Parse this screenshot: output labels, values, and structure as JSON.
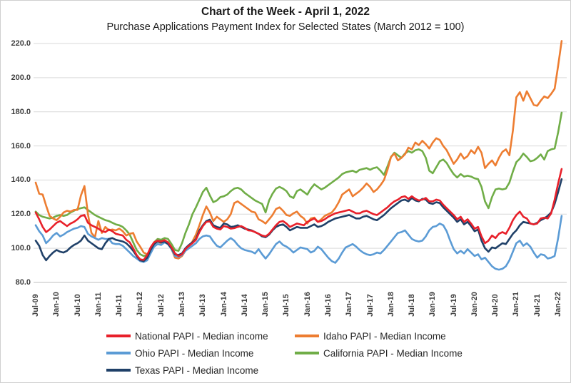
{
  "chart_data": {
    "type": "line",
    "title": "Chart of the Week - April 1, 2022",
    "subtitle": "Purchase Applications Payment Index for Selected States (March 2012 = 100)",
    "x_start": "Jul-2009",
    "x_end": "Feb-2022",
    "x_frequency": "monthly",
    "grid": "horizontal",
    "legend_position": "bottom",
    "ylim": [
      80,
      220
    ],
    "y_ticks": [
      220,
      200,
      180,
      160,
      140,
      120,
      100,
      80
    ],
    "y_tick_labels": [
      "220.0",
      "200.0",
      "180.0",
      "160.0",
      "140.0",
      "120.0",
      "100.0",
      "80.0"
    ],
    "x_tick_labels": [
      "Jul-09",
      "Jan-10",
      "Jul-10",
      "Jan-11",
      "Jul-11",
      "Jan-12",
      "Jul-12",
      "Jan-13",
      "Jul-13",
      "Jan-14",
      "Jul-14",
      "Jan-15",
      "Jul-15",
      "Jan-16",
      "Jul-16",
      "Jan-17",
      "Jul-17",
      "Jan-18",
      "Jul-18",
      "Jan-19",
      "Jul-19",
      "Jan-20",
      "Jul-20",
      "Jan-21",
      "Jul-21",
      "Jan-22"
    ],
    "series": [
      {
        "id": "national",
        "name": "National PAPI - Median income",
        "color": "#e8202a",
        "z": 5,
        "values": [
          121,
          117,
          112.5,
          109.5,
          111,
          113,
          115,
          116,
          114.5,
          113,
          114.5,
          115.5,
          117,
          119,
          119.5,
          115,
          113.5,
          112.5,
          111.5,
          110,
          109.5,
          111,
          110,
          108.5,
          108,
          107.5,
          105,
          103.5,
          100,
          96,
          93.5,
          93.2,
          96,
          100.5,
          103.5,
          104.5,
          104,
          104.8,
          103.5,
          100.5,
          97,
          95.5,
          96.5,
          99.5,
          101.5,
          103,
          105,
          109.5,
          113,
          115.5,
          115.8,
          112.5,
          111.5,
          111,
          113,
          112.5,
          111.5,
          111.8,
          112.5,
          113,
          112,
          110.5,
          110.3,
          109.5,
          108.5,
          107.5,
          107,
          108.5,
          111,
          113.5,
          115.5,
          116,
          114.5,
          112.5,
          113.5,
          114.5,
          114,
          113.5,
          115.5,
          116.5,
          117.5,
          115.5,
          116,
          117,
          118.5,
          119.5,
          120.5,
          121,
          121.5,
          122,
          122.5,
          121.5,
          120.5,
          120.5,
          121.5,
          122,
          121,
          120,
          119.5,
          121,
          122.5,
          124,
          126,
          127.5,
          128.5,
          130,
          130.5,
          129,
          130.5,
          129,
          128,
          128.5,
          129.5,
          127.5,
          127.5,
          128.5,
          128,
          125.5,
          123.5,
          121.5,
          119.5,
          117,
          118.5,
          115.5,
          117,
          114.5,
          111.5,
          112.5,
          107,
          103,
          104.5,
          107.5,
          106,
          108.5,
          109.5,
          108.5,
          112,
          116.5,
          119.5,
          121.5,
          118.5,
          117.5,
          114.5,
          114,
          114.5,
          117.5,
          118,
          117.5,
          120.5,
          128.5,
          138,
          146.5
        ]
      },
      {
        "id": "idaho",
        "name": "Idaho PAPI - Median Income",
        "color": "#ed7d31",
        "z": 2,
        "values": [
          138.5,
          132,
          131.5,
          125,
          119,
          117.5,
          116.5,
          118.5,
          121,
          122,
          121.5,
          122.5,
          122.5,
          131,
          136.5,
          120,
          109,
          106.5,
          116,
          109,
          112.5,
          110.5,
          111,
          110.5,
          111.5,
          110,
          107.5,
          108.5,
          109,
          104,
          101,
          97.5,
          96.5,
          99,
          102.5,
          104,
          103,
          104.5,
          103.5,
          99.5,
          94.5,
          94,
          95.5,
          98.5,
          101,
          104,
          108,
          113.5,
          119.5,
          124.5,
          121,
          116,
          118.5,
          117,
          115.5,
          117,
          120,
          126.5,
          127.5,
          126,
          124.5,
          123,
          121.5,
          121,
          117,
          116,
          114.5,
          117,
          119.5,
          123,
          124,
          122,
          119.5,
          119,
          120.5,
          121.5,
          119,
          117.5,
          114.5,
          117.5,
          118,
          115.5,
          117,
          119,
          120,
          121,
          123.5,
          127,
          131.5,
          133,
          134.5,
          130.5,
          132,
          133.5,
          135.5,
          138,
          136,
          133,
          134.5,
          137,
          140,
          146,
          153.5,
          155.5,
          151.5,
          153,
          155,
          159,
          158,
          162,
          160.5,
          163,
          161,
          158.5,
          162,
          164.5,
          163.5,
          160,
          157.5,
          153.5,
          149.5,
          152,
          155.5,
          152.5,
          154,
          157.5,
          155.5,
          159.5,
          156,
          147,
          149.5,
          151.5,
          148.5,
          153,
          156.5,
          158,
          154.5,
          169,
          188.5,
          191.5,
          186.5,
          192,
          188,
          184,
          183.5,
          186.5,
          189,
          188,
          190.5,
          193.5,
          207,
          221.5
        ]
      },
      {
        "id": "ohio",
        "name": "Ohio PAPI - Median Income",
        "color": "#5b9bd5",
        "z": 3,
        "values": [
          113.5,
          110,
          107.5,
          103,
          105,
          107.5,
          109,
          107,
          108,
          109.5,
          110.5,
          111.5,
          112,
          113,
          112.5,
          108.5,
          107,
          106,
          105,
          106,
          105.5,
          105.5,
          103,
          102.5,
          102.5,
          101.5,
          99.5,
          97.5,
          95.5,
          94,
          92.5,
          92,
          93,
          97,
          101,
          102.5,
          102,
          103.5,
          102.5,
          99.5,
          95.5,
          95,
          96,
          98.5,
          100,
          101.5,
          103,
          105.5,
          107,
          107.5,
          107,
          104,
          101.5,
          100.5,
          102.5,
          104.5,
          106,
          104.5,
          102,
          100,
          99,
          98.5,
          98,
          97,
          99.5,
          96.5,
          94,
          96.5,
          99.5,
          102.5,
          104,
          102,
          101,
          99.5,
          97.5,
          99,
          100.5,
          100,
          99.5,
          97.5,
          98.5,
          101,
          99.5,
          97,
          94.5,
          92.5,
          91.5,
          94,
          97.5,
          100.5,
          101.5,
          102.5,
          101,
          99,
          97.5,
          96.5,
          96,
          96.5,
          97.5,
          97,
          99,
          101.5,
          104,
          106.5,
          109,
          109.5,
          110.5,
          108,
          105.5,
          104.5,
          104,
          104.5,
          107,
          110.5,
          112.5,
          113,
          114.5,
          113.5,
          110,
          104.5,
          99.5,
          97,
          98.5,
          97,
          99.5,
          97.5,
          95.5,
          96.5,
          93.5,
          94.5,
          92,
          89.5,
          88,
          87.5,
          88,
          89.5,
          93,
          98,
          103,
          104.5,
          101.5,
          103,
          101,
          97.5,
          94.5,
          96.5,
          96,
          94,
          94.5,
          95.5,
          106,
          119
        ]
      },
      {
        "id": "california",
        "name": "California PAPI - Median Income",
        "color": "#70ad47",
        "z": 1,
        "values": [
          121.5,
          119.5,
          118.5,
          118,
          117.5,
          118,
          119,
          119.5,
          119,
          119.5,
          121,
          122,
          123,
          123.5,
          124,
          122.5,
          121,
          119.5,
          118.5,
          117.5,
          116.5,
          116,
          115,
          114,
          113.5,
          112.5,
          110.5,
          108,
          103.5,
          99,
          96.5,
          95.5,
          96,
          99.5,
          103.5,
          105.5,
          105,
          106,
          105.5,
          102.5,
          99,
          98.5,
          103,
          109,
          114,
          120,
          124,
          128.5,
          133,
          135.5,
          131,
          127,
          128,
          130,
          130.5,
          131.5,
          133.5,
          135,
          135.5,
          134.5,
          132.5,
          131,
          129.5,
          128,
          127,
          126,
          121,
          128,
          132,
          135,
          136,
          135,
          133.5,
          130.5,
          129.5,
          133.5,
          134.5,
          133,
          131.5,
          135,
          137.5,
          136,
          134.5,
          135.5,
          137,
          138.5,
          140,
          141.5,
          143.5,
          144.5,
          145,
          145.5,
          144.5,
          146,
          146.5,
          147,
          146,
          147,
          147.5,
          145.5,
          143,
          148,
          153.5,
          156,
          154.5,
          153,
          155.5,
          157,
          156,
          157.5,
          158,
          157,
          153,
          145.5,
          144,
          147.5,
          151,
          152,
          150,
          146.5,
          143.5,
          141.5,
          143.5,
          142,
          142.5,
          142,
          141,
          140.5,
          136,
          127.5,
          123.5,
          130,
          134.5,
          135,
          134.5,
          135,
          138.5,
          145,
          150.5,
          152.5,
          155.5,
          153.5,
          151,
          151.5,
          153,
          155,
          152,
          157,
          158,
          158.5,
          168,
          179.5
        ]
      },
      {
        "id": "texas",
        "name": "Texas PAPI - Median Income",
        "color": "#1f4068",
        "z": 4,
        "values": [
          104.5,
          101.5,
          96,
          93,
          95.5,
          97.5,
          99,
          98,
          97.5,
          98.5,
          100.5,
          102,
          103,
          104.5,
          107.5,
          104.5,
          103,
          101.5,
          100,
          99.5,
          103,
          105.5,
          106,
          105,
          104.5,
          104,
          103,
          101,
          98.5,
          95.5,
          93,
          92.5,
          94.5,
          99,
          102.5,
          104,
          103.5,
          104,
          102.5,
          100,
          96.5,
          96,
          97,
          100,
          102,
          103.5,
          105.5,
          110.5,
          113.5,
          116,
          116.8,
          113.5,
          112.5,
          112,
          114.5,
          114,
          112.5,
          112.8,
          113.5,
          112.5,
          111.5,
          111,
          110.5,
          109.5,
          108.5,
          107,
          106.5,
          108,
          110.5,
          112.5,
          113.5,
          114,
          112.5,
          110.5,
          111.5,
          112.5,
          112,
          112,
          112,
          113,
          114,
          112.5,
          113,
          114,
          115.5,
          116.5,
          117.5,
          118,
          118.5,
          119,
          119.5,
          118.5,
          117.5,
          117.5,
          118.5,
          119,
          118,
          117,
          116.5,
          118,
          119.5,
          121.5,
          123.5,
          125,
          126.5,
          128,
          128.5,
          127.5,
          129.5,
          128,
          127.5,
          129,
          128.5,
          126.5,
          126,
          127,
          126.5,
          124,
          122,
          120,
          118,
          115.5,
          117,
          114,
          115.5,
          113,
          110,
          111,
          104.5,
          100,
          98,
          100.5,
          100,
          101.5,
          103,
          102.5,
          105.5,
          108.5,
          110.5,
          113.5,
          115.5,
          115,
          114.5,
          114,
          115,
          116.5,
          117.5,
          119,
          121,
          126,
          133,
          140.5
        ]
      }
    ]
  }
}
